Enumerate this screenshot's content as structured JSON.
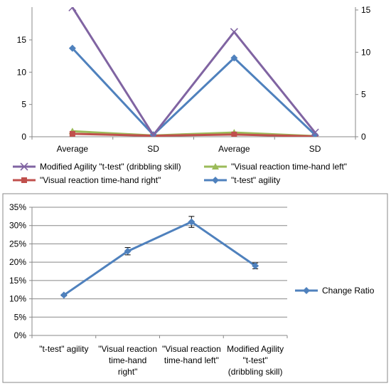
{
  "chart_data": [
    {
      "type": "line",
      "categories": [
        "Average",
        "SD",
        "Average",
        "SD"
      ],
      "y_left": {
        "range": [
          0,
          18
        ],
        "ticks": [
          "0",
          "5",
          "10",
          "15"
        ],
        "tick_values": [
          0,
          5,
          10,
          15
        ]
      },
      "y_right": {
        "range": [
          0,
          15
        ],
        "ticks": [
          "0",
          "5",
          "10",
          "15"
        ],
        "tick_values": [
          0,
          5,
          10,
          15
        ]
      },
      "grid": false,
      "legend_position": "bottom",
      "series": [
        {
          "name": "Modified Agility \"t-test\" (dribbling skill)",
          "axis": "right",
          "marker": "x",
          "color": "#8064a2",
          "values": [
            15.3,
            0.2,
            12.4,
            0.5
          ]
        },
        {
          "name": "\"Visual  reaction time-hand left\"",
          "axis": "left",
          "marker": "triangle",
          "color": "#9bbb59",
          "values": [
            0.85,
            0.2,
            0.65,
            0.1
          ]
        },
        {
          "name": "\"Visual  reaction time-hand right\"",
          "axis": "left",
          "marker": "square",
          "color": "#c0504d",
          "values": [
            0.45,
            0.15,
            0.35,
            0.05
          ]
        },
        {
          "name": "\"t-test\" agility",
          "axis": "left",
          "marker": "diamond",
          "color": "#4f81bd",
          "values": [
            13.7,
            0.3,
            12.2,
            0.3
          ]
        }
      ],
      "legend_order": [
        0,
        1,
        2,
        3
      ]
    },
    {
      "type": "line",
      "categories": [
        "\"t-test\" agility",
        "\"Visual  reaction time-hand right\"",
        "\"Visual  reaction time-hand left\"",
        "Modified Agility \"t-test\" (dribbling skill)"
      ],
      "category_lines": [
        [
          "\"t-test\" agility"
        ],
        [
          "\"Visual  reaction",
          "time-hand",
          "right\""
        ],
        [
          "\"Visual  reaction",
          "time-hand left\""
        ],
        [
          "Modified Agility",
          "\"t-test\"",
          "(dribbling skill)"
        ]
      ],
      "y_range": [
        0,
        0.35
      ],
      "y_ticks": [
        "0%",
        "5%",
        "10%",
        "15%",
        "20%",
        "25%",
        "30%",
        "35%"
      ],
      "y_tick_values": [
        0,
        0.05,
        0.1,
        0.15,
        0.2,
        0.25,
        0.3,
        0.35
      ],
      "grid": true,
      "legend_position": "right",
      "series": [
        {
          "name": "Change Ratio",
          "marker": "diamond",
          "color": "#4f81bd",
          "values": [
            0.11,
            0.23,
            0.31,
            0.19
          ],
          "error": [
            0.002,
            0.01,
            0.015,
            0.008
          ]
        }
      ]
    }
  ]
}
